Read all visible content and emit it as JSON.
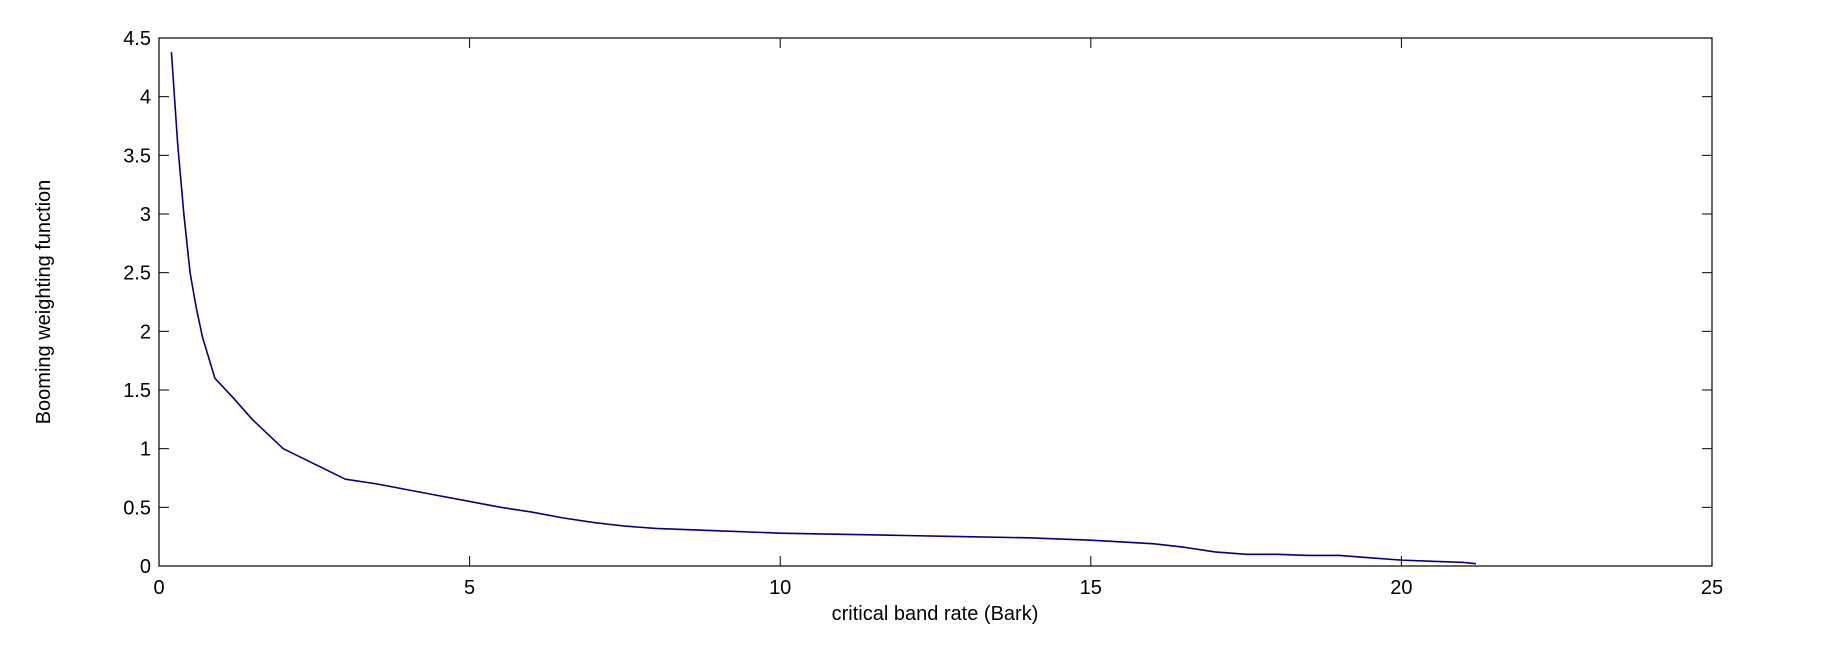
{
  "chart_data": {
    "type": "line",
    "title": "",
    "xlabel": "critical band rate (Bark)",
    "ylabel": "Booming weighting function",
    "xlim": [
      0,
      25
    ],
    "ylim": [
      0,
      4.5
    ],
    "xticks": [
      0,
      5,
      10,
      15,
      20,
      25
    ],
    "xtick_labels": [
      "0",
      "5",
      "10",
      "15",
      "20",
      "25"
    ],
    "yticks": [
      0,
      0.5,
      1,
      1.5,
      2,
      2.5,
      3,
      3.5,
      4,
      4.5
    ],
    "ytick_labels": [
      "0",
      "0.5",
      "1",
      "1.5",
      "2",
      "2.5",
      "3",
      "3.5",
      "4",
      "4.5"
    ],
    "grid": false,
    "series": [
      {
        "name": "booming weighting",
        "color": "#000080",
        "x": [
          0.2,
          0.3,
          0.4,
          0.5,
          0.6,
          0.7,
          0.9,
          1.2,
          1.5,
          2.0,
          2.5,
          3.0,
          3.5,
          4.0,
          4.5,
          5.0,
          5.5,
          6.0,
          6.5,
          7.0,
          7.5,
          8.0,
          9.0,
          10.0,
          11.0,
          12.0,
          13.0,
          14.0,
          15.0,
          16.0,
          16.5,
          17.0,
          17.5,
          18.0,
          18.5,
          19.0,
          19.5,
          20.0,
          20.5,
          21.0,
          21.2
        ],
        "y": [
          4.38,
          3.6,
          3.0,
          2.5,
          2.2,
          1.95,
          1.6,
          1.43,
          1.25,
          1.0,
          0.87,
          0.74,
          0.7,
          0.65,
          0.6,
          0.55,
          0.5,
          0.46,
          0.41,
          0.37,
          0.34,
          0.32,
          0.3,
          0.28,
          0.27,
          0.26,
          0.25,
          0.24,
          0.22,
          0.19,
          0.16,
          0.12,
          0.1,
          0.1,
          0.09,
          0.09,
          0.07,
          0.05,
          0.04,
          0.03,
          0.02
        ]
      }
    ]
  }
}
